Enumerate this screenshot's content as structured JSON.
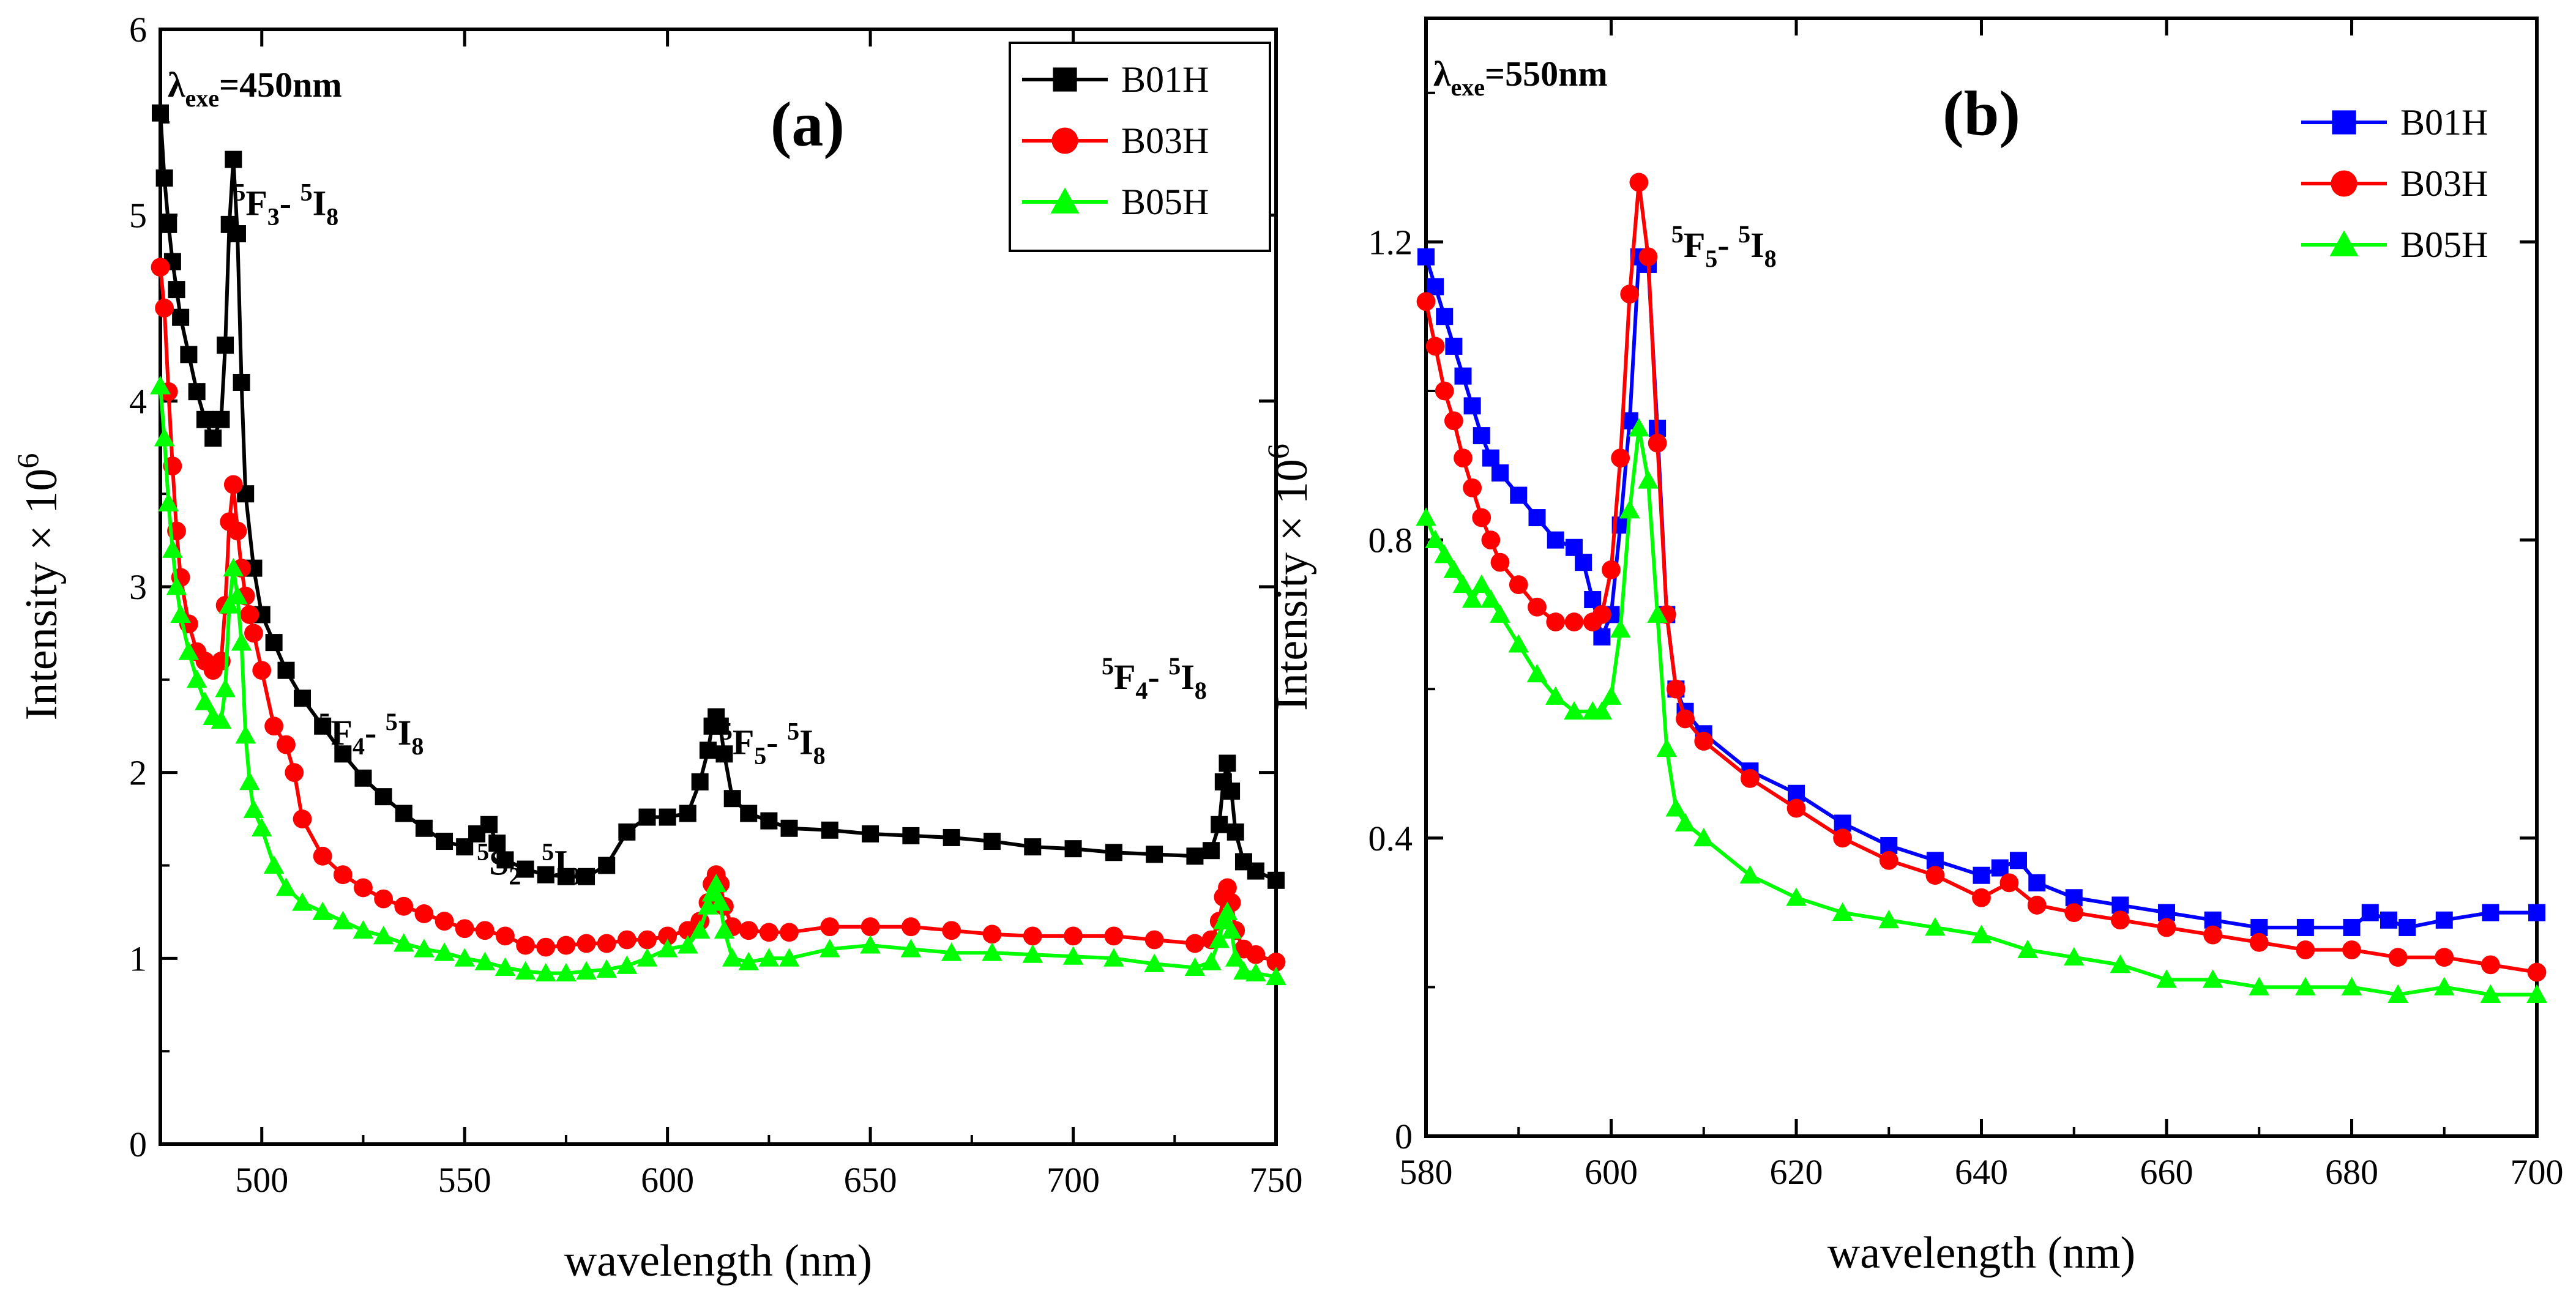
{
  "chart_data": [
    {
      "id": "a",
      "type": "line",
      "panel_label": "(a)",
      "title": "",
      "xlabel": "wavelength (nm)",
      "ylabel_text": "Intensity × 10",
      "ylabel_exp": "6",
      "xlim": [
        475,
        750
      ],
      "ylim": [
        0,
        6
      ],
      "xticks": [
        "500",
        "550",
        "600",
        "650",
        "700",
        "750"
      ],
      "yticks": [
        "0",
        "1",
        "2",
        "3",
        "4",
        "5",
        "6"
      ],
      "excitation": {
        "symbol": "λ",
        "sub": "exe",
        "value": "=450nm"
      },
      "legend_position": "top-right",
      "annotations": [
        {
          "id": "a1",
          "at": [
            493,
            5.0
          ],
          "upper": "F",
          "upper_lvl": "3",
          "lower": "I",
          "lower_lvl": "8"
        },
        {
          "id": "a2",
          "at": [
            514,
            2.15
          ],
          "upper": "F",
          "upper_lvl": "4",
          "lower": "I",
          "lower_lvl": "8"
        },
        {
          "id": "a3",
          "at": [
            553,
            1.45
          ],
          "upper": "S",
          "upper_lvl": "2",
          "lower": "I",
          "lower_lvl": "8"
        },
        {
          "id": "a4",
          "at": [
            613,
            2.1
          ],
          "upper": "F",
          "upper_lvl": "5",
          "lower": "I",
          "lower_lvl": "8"
        },
        {
          "id": "a5",
          "at": [
            707,
            2.45
          ],
          "upper": "F",
          "upper_lvl": "4",
          "lower": "I",
          "lower_lvl": "8"
        }
      ],
      "series": [
        {
          "name": "B01H",
          "color": "#000000",
          "marker": "square",
          "x": [
            475,
            476,
            477,
            478,
            479,
            480,
            482,
            484,
            486,
            488,
            490,
            491,
            492,
            493,
            494,
            495,
            496,
            498,
            500,
            503,
            506,
            510,
            515,
            520,
            525,
            530,
            535,
            540,
            545,
            550,
            553,
            556,
            558,
            560,
            565,
            570,
            575,
            580,
            585,
            590,
            595,
            600,
            605,
            608,
            610,
            611,
            612,
            613,
            614,
            616,
            620,
            625,
            630,
            640,
            650,
            660,
            670,
            680,
            690,
            700,
            710,
            720,
            730,
            734,
            736,
            737,
            738,
            739,
            740,
            742,
            745,
            750
          ],
          "y": [
            5.55,
            5.2,
            4.95,
            4.75,
            4.6,
            4.45,
            4.25,
            4.05,
            3.9,
            3.8,
            3.9,
            4.3,
            4.95,
            5.3,
            4.9,
            4.1,
            3.5,
            3.1,
            2.85,
            2.7,
            2.55,
            2.4,
            2.25,
            2.1,
            1.97,
            1.87,
            1.78,
            1.7,
            1.63,
            1.6,
            1.67,
            1.72,
            1.62,
            1.53,
            1.48,
            1.45,
            1.44,
            1.44,
            1.5,
            1.68,
            1.76,
            1.76,
            1.78,
            1.95,
            2.12,
            2.25,
            2.3,
            2.25,
            2.1,
            1.86,
            1.78,
            1.74,
            1.7,
            1.69,
            1.67,
            1.66,
            1.65,
            1.63,
            1.6,
            1.59,
            1.57,
            1.56,
            1.55,
            1.58,
            1.72,
            1.95,
            2.05,
            1.9,
            1.68,
            1.52,
            1.47,
            1.42
          ]
        },
        {
          "name": "B03H",
          "color": "#ff0000",
          "marker": "circle",
          "x": [
            475,
            476,
            477,
            478,
            479,
            480,
            482,
            484,
            486,
            488,
            490,
            491,
            492,
            493,
            494,
            495,
            496,
            497,
            498,
            500,
            503,
            506,
            508,
            510,
            515,
            520,
            525,
            530,
            535,
            540,
            545,
            550,
            555,
            560,
            565,
            570,
            575,
            580,
            585,
            590,
            595,
            600,
            605,
            608,
            610,
            611,
            612,
            613,
            614,
            616,
            620,
            625,
            630,
            640,
            650,
            660,
            670,
            680,
            690,
            700,
            710,
            720,
            730,
            734,
            736,
            737,
            738,
            739,
            740,
            742,
            745,
            750
          ],
          "y": [
            4.72,
            4.5,
            4.05,
            3.65,
            3.3,
            3.05,
            2.8,
            2.65,
            2.6,
            2.55,
            2.6,
            2.9,
            3.35,
            3.55,
            3.3,
            3.1,
            2.95,
            2.85,
            2.75,
            2.55,
            2.25,
            2.15,
            2.0,
            1.75,
            1.55,
            1.45,
            1.38,
            1.32,
            1.28,
            1.24,
            1.2,
            1.16,
            1.15,
            1.12,
            1.07,
            1.06,
            1.07,
            1.08,
            1.08,
            1.1,
            1.1,
            1.12,
            1.15,
            1.2,
            1.3,
            1.4,
            1.45,
            1.4,
            1.28,
            1.17,
            1.15,
            1.14,
            1.14,
            1.17,
            1.17,
            1.17,
            1.15,
            1.13,
            1.12,
            1.12,
            1.12,
            1.1,
            1.08,
            1.1,
            1.2,
            1.33,
            1.38,
            1.3,
            1.15,
            1.05,
            1.02,
            0.98
          ]
        },
        {
          "name": "B05H",
          "color": "#00ff00",
          "marker": "triangle",
          "x": [
            475,
            476,
            477,
            478,
            479,
            480,
            482,
            484,
            486,
            488,
            490,
            491,
            492,
            493,
            494,
            495,
            496,
            497,
            498,
            500,
            503,
            506,
            510,
            515,
            520,
            525,
            530,
            535,
            540,
            545,
            550,
            555,
            560,
            565,
            570,
            575,
            580,
            585,
            590,
            595,
            600,
            605,
            608,
            610,
            611,
            612,
            613,
            614,
            616,
            620,
            625,
            630,
            640,
            650,
            660,
            670,
            680,
            690,
            700,
            710,
            720,
            730,
            734,
            736,
            737,
            738,
            739,
            740,
            742,
            745,
            750
          ],
          "y": [
            4.08,
            3.8,
            3.45,
            3.2,
            3.0,
            2.85,
            2.65,
            2.5,
            2.38,
            2.3,
            2.28,
            2.45,
            2.9,
            3.1,
            2.95,
            2.7,
            2.2,
            1.95,
            1.8,
            1.7,
            1.5,
            1.38,
            1.3,
            1.25,
            1.2,
            1.15,
            1.12,
            1.08,
            1.05,
            1.03,
            1.0,
            0.98,
            0.95,
            0.93,
            0.92,
            0.92,
            0.93,
            0.94,
            0.96,
            1.0,
            1.05,
            1.07,
            1.15,
            1.28,
            1.35,
            1.4,
            1.3,
            1.15,
            1.0,
            0.98,
            1.0,
            1.0,
            1.05,
            1.07,
            1.05,
            1.03,
            1.03,
            1.02,
            1.01,
            1.0,
            0.97,
            0.95,
            0.98,
            1.1,
            1.2,
            1.25,
            1.15,
            1.0,
            0.93,
            0.92,
            0.9
          ]
        }
      ]
    },
    {
      "id": "b",
      "type": "line",
      "panel_label": "(b)",
      "title": "",
      "xlabel": "wavelength (nm)",
      "ylabel_text": "Intensity × 10",
      "ylabel_exp": "6",
      "xlim": [
        580,
        700
      ],
      "ylim": [
        0,
        1.5
      ],
      "xticks": [
        "580",
        "600",
        "620",
        "640",
        "660",
        "680",
        "700"
      ],
      "yticks": [
        "0",
        "0.4",
        "0.8",
        "1.2"
      ],
      "excitation": {
        "symbol": "λ",
        "sub": "exe",
        "value": "=550nm"
      },
      "legend_position": "top-right",
      "annotations": [
        {
          "id": "b1",
          "at": [
            606.5,
            1.18
          ],
          "upper": "F",
          "upper_lvl": "5",
          "lower": "I",
          "lower_lvl": "8"
        }
      ],
      "series": [
        {
          "name": "B01H",
          "color": "#0000ff",
          "marker": "square",
          "x": [
            580,
            581,
            582,
            583,
            584,
            585,
            586,
            587,
            588,
            590,
            592,
            594,
            596,
            597,
            598,
            599,
            600,
            601,
            602,
            603,
            604,
            605,
            606,
            607,
            608,
            610,
            615,
            620,
            625,
            630,
            635,
            640,
            642,
            644,
            646,
            650,
            655,
            660,
            665,
            670,
            675,
            680,
            682,
            684,
            686,
            690,
            695,
            700
          ],
          "y": [
            1.18,
            1.14,
            1.1,
            1.06,
            1.02,
            0.98,
            0.94,
            0.91,
            0.89,
            0.86,
            0.83,
            0.8,
            0.79,
            0.77,
            0.72,
            0.67,
            0.7,
            0.82,
            0.96,
            1.18,
            1.17,
            0.95,
            0.7,
            0.6,
            0.57,
            0.54,
            0.49,
            0.46,
            0.42,
            0.39,
            0.37,
            0.35,
            0.36,
            0.37,
            0.34,
            0.32,
            0.31,
            0.3,
            0.29,
            0.28,
            0.28,
            0.28,
            0.3,
            0.29,
            0.28,
            0.29,
            0.3,
            0.3
          ]
        },
        {
          "name": "B03H",
          "color": "#ff0000",
          "marker": "circle",
          "x": [
            580,
            581,
            582,
            583,
            584,
            585,
            586,
            587,
            588,
            590,
            592,
            594,
            596,
            598,
            599,
            600,
            601,
            602,
            603,
            604,
            605,
            606,
            607,
            608,
            610,
            615,
            620,
            625,
            630,
            635,
            640,
            643,
            646,
            650,
            655,
            660,
            665,
            670,
            675,
            680,
            685,
            690,
            695,
            700
          ],
          "y": [
            1.12,
            1.06,
            1.0,
            0.96,
            0.91,
            0.87,
            0.83,
            0.8,
            0.77,
            0.74,
            0.71,
            0.69,
            0.69,
            0.69,
            0.7,
            0.76,
            0.91,
            1.13,
            1.28,
            1.18,
            0.93,
            0.7,
            0.6,
            0.56,
            0.53,
            0.48,
            0.44,
            0.4,
            0.37,
            0.35,
            0.32,
            0.34,
            0.31,
            0.3,
            0.29,
            0.28,
            0.27,
            0.26,
            0.25,
            0.25,
            0.24,
            0.24,
            0.23,
            0.22
          ]
        },
        {
          "name": "B05H",
          "color": "#00ff00",
          "marker": "triangle",
          "x": [
            580,
            581,
            582,
            583,
            584,
            585,
            586,
            587,
            588,
            590,
            592,
            594,
            596,
            598,
            599,
            600,
            601,
            602,
            603,
            604,
            605,
            606,
            607,
            608,
            610,
            615,
            620,
            625,
            630,
            635,
            640,
            645,
            650,
            655,
            660,
            665,
            670,
            675,
            680,
            685,
            690,
            695,
            700
          ],
          "y": [
            0.83,
            0.8,
            0.78,
            0.76,
            0.74,
            0.72,
            0.74,
            0.72,
            0.7,
            0.66,
            0.62,
            0.59,
            0.57,
            0.57,
            0.57,
            0.59,
            0.68,
            0.84,
            0.95,
            0.88,
            0.7,
            0.52,
            0.44,
            0.42,
            0.4,
            0.35,
            0.32,
            0.3,
            0.29,
            0.28,
            0.27,
            0.25,
            0.24,
            0.23,
            0.21,
            0.21,
            0.2,
            0.2,
            0.2,
            0.19,
            0.2,
            0.19,
            0.19
          ]
        }
      ]
    }
  ]
}
